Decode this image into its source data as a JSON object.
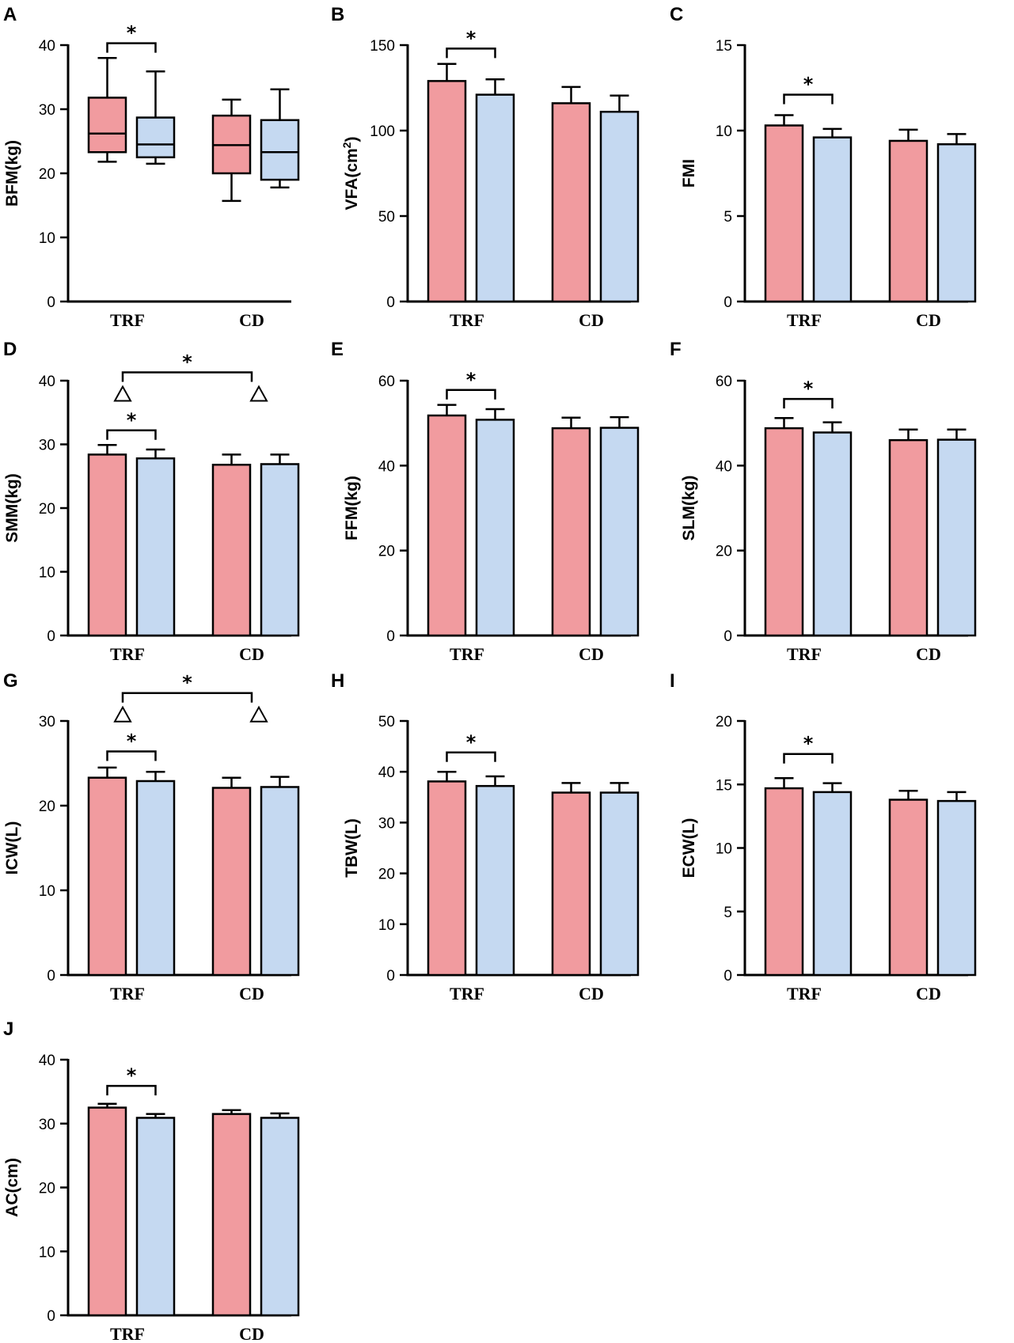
{
  "figure": {
    "colors": {
      "trf_bar": "#F19B9F",
      "cd_bar": "#C5D9F1",
      "stroke": "#000000"
    },
    "markers": {
      "significance": "*",
      "between_group": "triangle-icon"
    },
    "group_labels": [
      "TRF",
      "CD"
    ]
  },
  "chart_data": [
    {
      "panel": "A",
      "type": "box",
      "ylabel": "BFM(kg)",
      "ylim": [
        0,
        40
      ],
      "yticks": [
        "0",
        "10",
        "20",
        "30",
        "40"
      ],
      "categories": [
        "TRF",
        "CD"
      ],
      "boxes": [
        {
          "group": "TRF",
          "bar": 1,
          "min": 21.8,
          "q1": 23.3,
          "median": 26.2,
          "q3": 31.8,
          "max": 38.0
        },
        {
          "group": "TRF",
          "bar": 2,
          "min": 21.5,
          "q1": 22.5,
          "median": 24.5,
          "q3": 28.7,
          "max": 35.9
        },
        {
          "group": "CD",
          "bar": 1,
          "min": 15.7,
          "q1": 20.0,
          "median": 24.4,
          "q3": 29.0,
          "max": 31.5
        },
        {
          "group": "CD",
          "bar": 2,
          "min": 17.8,
          "q1": 19.0,
          "median": 23.3,
          "q3": 28.3,
          "max": 33.1
        }
      ],
      "annotations": [
        {
          "type": "within",
          "group": "TRF",
          "label": "*",
          "y": 40.3
        }
      ]
    },
    {
      "panel": "B",
      "type": "bar",
      "ylabel": "VFA(cm",
      "ylabel_sup": "2",
      "ylabel_close": ")",
      "ylim": [
        0,
        150
      ],
      "yticks": [
        "0",
        "50",
        "100",
        "150"
      ],
      "categories": [
        "TRF",
        "CD"
      ],
      "series": [
        {
          "bar": 1,
          "values": [
            129,
            116
          ],
          "errors": [
            10,
            9.5
          ]
        },
        {
          "bar": 2,
          "values": [
            121,
            111
          ],
          "errors": [
            9,
            9.5
          ]
        }
      ],
      "annotations": [
        {
          "type": "within",
          "group": "TRF",
          "label": "*",
          "y": 148
        }
      ]
    },
    {
      "panel": "C",
      "type": "bar",
      "ylabel": "FMI",
      "ylim": [
        0,
        15
      ],
      "yticks": [
        "0",
        "5",
        "10",
        "15"
      ],
      "categories": [
        "TRF",
        "CD"
      ],
      "series": [
        {
          "bar": 1,
          "values": [
            10.3,
            9.4
          ],
          "errors": [
            0.6,
            0.65
          ]
        },
        {
          "bar": 2,
          "values": [
            9.6,
            9.2
          ],
          "errors": [
            0.5,
            0.6
          ]
        }
      ],
      "annotations": [
        {
          "type": "within",
          "group": "TRF",
          "label": "*",
          "y": 12.1
        }
      ]
    },
    {
      "panel": "D",
      "type": "bar",
      "ylabel": "SMM(kg)",
      "ylim": [
        0,
        40
      ],
      "yticks": [
        "0",
        "10",
        "20",
        "30",
        "40"
      ],
      "categories": [
        "TRF",
        "CD"
      ],
      "series": [
        {
          "bar": 1,
          "values": [
            28.4,
            26.8
          ],
          "errors": [
            1.5,
            1.6
          ]
        },
        {
          "bar": 2,
          "values": [
            27.8,
            26.9
          ],
          "errors": [
            1.4,
            1.5
          ]
        }
      ],
      "annotations": [
        {
          "type": "within",
          "group": "TRF",
          "label": "*",
          "y": 32.2
        },
        {
          "type": "between",
          "label": "*",
          "y": 41.3,
          "markers": [
            "triangle",
            "triangle"
          ]
        }
      ]
    },
    {
      "panel": "E",
      "type": "bar",
      "ylabel": "FFM(kg)",
      "ylim": [
        0,
        60
      ],
      "yticks": [
        "0",
        "20",
        "40",
        "60"
      ],
      "categories": [
        "TRF",
        "CD"
      ],
      "series": [
        {
          "bar": 1,
          "values": [
            51.8,
            48.8
          ],
          "errors": [
            2.5,
            2.5
          ]
        },
        {
          "bar": 2,
          "values": [
            50.8,
            48.9
          ],
          "errors": [
            2.5,
            2.5
          ]
        }
      ],
      "annotations": [
        {
          "type": "within",
          "group": "TRF",
          "label": "*",
          "y": 57.8
        }
      ]
    },
    {
      "panel": "F",
      "type": "bar",
      "ylabel": "SLM(kg)",
      "ylim": [
        0,
        60
      ],
      "yticks": [
        "0",
        "20",
        "40",
        "60"
      ],
      "categories": [
        "TRF",
        "CD"
      ],
      "series": [
        {
          "bar": 1,
          "values": [
            48.8,
            46.0
          ],
          "errors": [
            2.4,
            2.5
          ]
        },
        {
          "bar": 2,
          "values": [
            47.8,
            46.1
          ],
          "errors": [
            2.4,
            2.4
          ]
        }
      ],
      "annotations": [
        {
          "type": "within",
          "group": "TRF",
          "label": "*",
          "y": 55.7
        }
      ]
    },
    {
      "panel": "G",
      "type": "bar",
      "ylabel": "ICW(L)",
      "ylim": [
        0,
        30
      ],
      "yticks": [
        "0",
        "10",
        "20",
        "30"
      ],
      "categories": [
        "TRF",
        "CD"
      ],
      "series": [
        {
          "bar": 1,
          "values": [
            23.3,
            22.1
          ],
          "errors": [
            1.2,
            1.2
          ]
        },
        {
          "bar": 2,
          "values": [
            22.9,
            22.2
          ],
          "errors": [
            1.1,
            1.2
          ]
        }
      ],
      "annotations": [
        {
          "type": "within",
          "group": "TRF",
          "label": "*",
          "y": 26.4
        },
        {
          "type": "between",
          "label": "*",
          "y": 33.3,
          "markers": [
            "triangle",
            "triangle"
          ]
        }
      ]
    },
    {
      "panel": "H",
      "type": "bar",
      "ylabel": "TBW(L)",
      "ylim": [
        0,
        50
      ],
      "yticks": [
        "0",
        "10",
        "20",
        "30",
        "40",
        "50"
      ],
      "categories": [
        "TRF",
        "CD"
      ],
      "series": [
        {
          "bar": 1,
          "values": [
            38.1,
            35.9
          ],
          "errors": [
            1.9,
            1.9
          ]
        },
        {
          "bar": 2,
          "values": [
            37.2,
            35.9
          ],
          "errors": [
            1.9,
            1.9
          ]
        }
      ],
      "annotations": [
        {
          "type": "within",
          "group": "TRF",
          "label": "*",
          "y": 43.8
        }
      ]
    },
    {
      "panel": "I",
      "type": "bar",
      "ylabel": "ECW(L)",
      "ylim": [
        0,
        20
      ],
      "yticks": [
        "0",
        "5",
        "10",
        "15",
        "20"
      ],
      "categories": [
        "TRF",
        "CD"
      ],
      "series": [
        {
          "bar": 1,
          "values": [
            14.7,
            13.8
          ],
          "errors": [
            0.8,
            0.7
          ]
        },
        {
          "bar": 2,
          "values": [
            14.4,
            13.7
          ],
          "errors": [
            0.7,
            0.7
          ]
        }
      ],
      "annotations": [
        {
          "type": "within",
          "group": "TRF",
          "label": "*",
          "y": 17.4
        }
      ]
    },
    {
      "panel": "J",
      "type": "bar",
      "ylabel": "AC(cm)",
      "ylim": [
        0,
        40
      ],
      "yticks": [
        "0",
        "10",
        "20",
        "30",
        "40"
      ],
      "categories": [
        "TRF",
        "CD"
      ],
      "series": [
        {
          "bar": 1,
          "values": [
            32.5,
            31.5
          ],
          "errors": [
            0.6,
            0.6
          ]
        },
        {
          "bar": 2,
          "values": [
            30.9,
            30.9
          ],
          "errors": [
            0.6,
            0.7
          ]
        }
      ],
      "annotations": [
        {
          "type": "within",
          "group": "TRF",
          "label": "*",
          "y": 35.9
        }
      ]
    }
  ]
}
